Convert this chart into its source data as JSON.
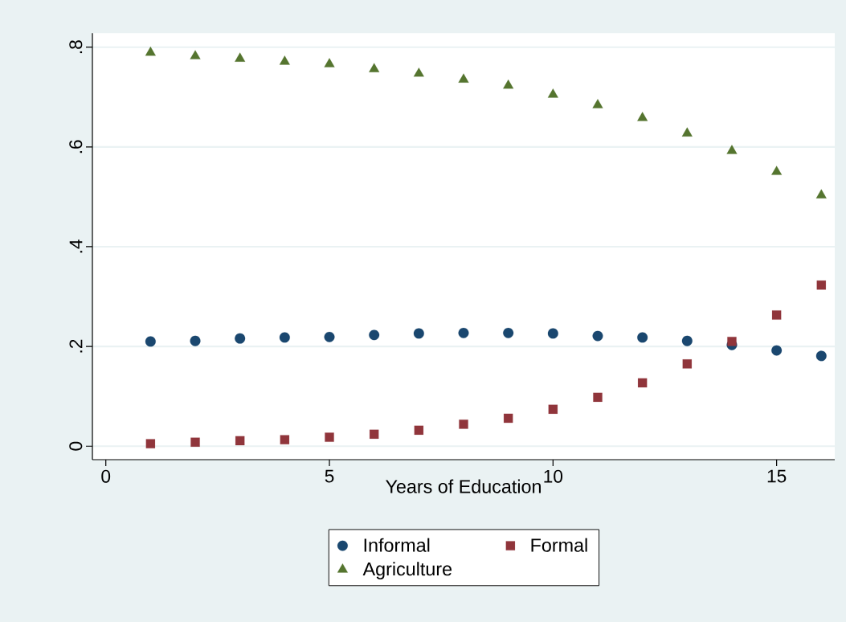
{
  "chart_data": {
    "type": "scatter",
    "xlabel": "Years of Education",
    "x": [
      1,
      2,
      3,
      4,
      5,
      6,
      7,
      8,
      9,
      10,
      11,
      12,
      13,
      14,
      15,
      16
    ],
    "series": [
      {
        "name": "Informal",
        "color": "#1a476f",
        "marker": "circle",
        "values": [
          0.21,
          0.211,
          0.216,
          0.218,
          0.219,
          0.223,
          0.226,
          0.227,
          0.227,
          0.226,
          0.221,
          0.218,
          0.211,
          0.203,
          0.192,
          0.181
        ]
      },
      {
        "name": "Formal",
        "color": "#90353b",
        "marker": "square",
        "values": [
          0.005,
          0.008,
          0.011,
          0.013,
          0.018,
          0.024,
          0.032,
          0.044,
          0.056,
          0.074,
          0.098,
          0.127,
          0.165,
          0.21,
          0.263,
          0.323
        ]
      },
      {
        "name": "Agriculture",
        "color": "#55752f",
        "marker": "triangle",
        "values": [
          0.789,
          0.782,
          0.777,
          0.771,
          0.766,
          0.756,
          0.747,
          0.735,
          0.723,
          0.705,
          0.684,
          0.658,
          0.627,
          0.592,
          0.55,
          0.503
        ]
      }
    ],
    "xlim": [
      -0.3,
      16.3
    ],
    "ylim": [
      -0.027,
      0.828
    ],
    "xticks": [
      0,
      5,
      10,
      15
    ],
    "yticks": [
      0,
      {
        "value": 0.2,
        "label": ".2"
      },
      {
        "value": 0.4,
        "label": ".4"
      },
      {
        "value": 0.6,
        "label": ".6"
      },
      {
        "value": 0.8,
        "label": ".8"
      }
    ],
    "grid": "y",
    "legend": "bottom"
  }
}
